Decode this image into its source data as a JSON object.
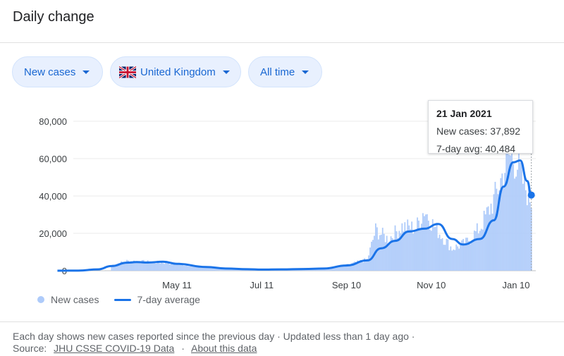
{
  "header": {
    "title": "Daily change"
  },
  "filters": [
    {
      "label": "New cases",
      "icon": "caret-down-icon"
    },
    {
      "label": "United Kingdom",
      "icon": "uk-flag-icon"
    },
    {
      "label": "All time",
      "icon": "caret-down-icon"
    }
  ],
  "tooltip": {
    "date": "21 Jan 2021",
    "new_cases": "New cases: 37,892",
    "avg": "7-day avg: 40,484"
  },
  "legend": {
    "bars": "New cases",
    "line": "7-day average"
  },
  "footer": {
    "line1": "Each day shows new cases reported since the previous day · Updated less than 1 day ago ·",
    "source_prefix": "Source:",
    "source_link": "JHU CSSE COVID-19 Data",
    "separator": "·",
    "about_link": "About this data"
  },
  "colors": {
    "bars": "#aecbfa",
    "line": "#1a73e8",
    "accent": "#1967d2"
  },
  "chart_data": {
    "type": "bar",
    "title": "",
    "xlabel": "",
    "ylabel": "",
    "ylim": [
      0,
      80000
    ],
    "yticks": [
      "0",
      "20,000",
      "40,000",
      "60,000",
      "80,000"
    ],
    "xticks": [
      "May 11",
      "Jul 11",
      "Sep 10",
      "Nov 10",
      "Jan 10"
    ],
    "grid": true,
    "legend_position": "bottom-left",
    "series": [
      {
        "name": "7-day average",
        "type": "line",
        "points": [
          [
            "Feb 15",
            0
          ],
          [
            "Mar 1",
            50
          ],
          [
            "Mar 15",
            700
          ],
          [
            "Mar 25",
            2500
          ],
          [
            "Apr 5",
            4300
          ],
          [
            "Apr 12",
            4600
          ],
          [
            "Apr 20",
            4400
          ],
          [
            "May 1",
            4800
          ],
          [
            "May 11",
            3700
          ],
          [
            "Jun 1",
            2000
          ],
          [
            "Jun 15",
            1200
          ],
          [
            "Jul 1",
            800
          ],
          [
            "Jul 11",
            600
          ],
          [
            "Jul 25",
            700
          ],
          [
            "Aug 10",
            900
          ],
          [
            "Aug 25",
            1200
          ],
          [
            "Sep 10",
            2800
          ],
          [
            "Sep 25",
            5500
          ],
          [
            "Oct 5",
            12000
          ],
          [
            "Oct 15",
            16000
          ],
          [
            "Oct 25",
            21000
          ],
          [
            "Nov 5",
            22500
          ],
          [
            "Nov 15",
            25000
          ],
          [
            "Nov 25",
            17000
          ],
          [
            "Dec 3",
            14000
          ],
          [
            "Dec 15",
            17000
          ],
          [
            "Dec 25",
            27000
          ],
          [
            "Jan 1",
            45000
          ],
          [
            "Jan 8",
            58000
          ],
          [
            "Jan 13",
            59000
          ],
          [
            "Jan 18",
            48000
          ],
          [
            "Jan 21",
            40484
          ]
        ]
      },
      {
        "name": "New cases",
        "type": "bar",
        "points": [
          [
            "Mar 25",
            3000
          ],
          [
            "Apr 5",
            5200
          ],
          [
            "Apr 20",
            4700
          ],
          [
            "May 5",
            4200
          ],
          [
            "Jun 1",
            1900
          ],
          [
            "Jul 11",
            600
          ],
          [
            "Aug 25",
            1300
          ],
          [
            "Sep 10",
            3000
          ],
          [
            "Sep 25",
            6000
          ],
          [
            "Oct 1",
            22000
          ],
          [
            "Oct 10",
            17000
          ],
          [
            "Oct 20",
            24000
          ],
          [
            "Oct 30",
            23000
          ],
          [
            "Nov 5",
            33000
          ],
          [
            "Nov 12",
            24000
          ],
          [
            "Nov 25",
            12000
          ],
          [
            "Dec 5",
            15000
          ],
          [
            "Dec 15",
            23000
          ],
          [
            "Dec 25",
            38000
          ],
          [
            "Jan 5",
            62000
          ],
          [
            "Jan 10",
            60000
          ],
          [
            "Jan 15",
            48000
          ],
          [
            "Jan 21",
            37892
          ]
        ]
      }
    ]
  }
}
